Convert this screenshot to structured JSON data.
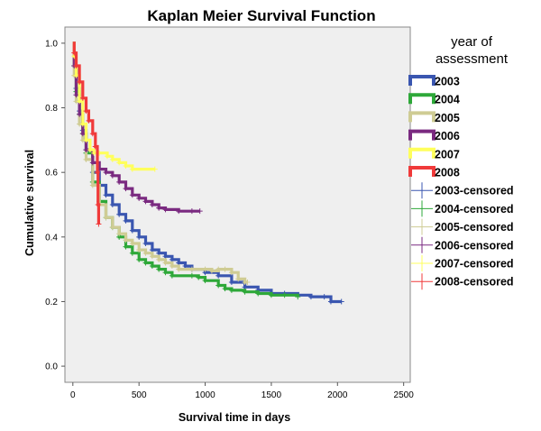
{
  "chart_data": {
    "type": "line",
    "title": "Kaplan Meier Survival Function",
    "xlabel": "Survival time in days",
    "ylabel": "Cumulative survival",
    "xlim": [
      -60,
      2550
    ],
    "ylim": [
      -0.05,
      1.05
    ],
    "x_ticks": [
      0,
      500,
      1000,
      1500,
      2000,
      2500
    ],
    "y_ticks": [
      "0.0",
      "0.2",
      "0.4",
      "0.6",
      "0.8",
      "1.0"
    ],
    "grid": false,
    "plot_background": "#efefef",
    "legend": {
      "title": "year of\nassessment",
      "position": "right",
      "entries": [
        "2003",
        "2004",
        "2005",
        "2006",
        "2007",
        "2008",
        "2003-censored",
        "2004-censored",
        "2005-censored",
        "2006-censored",
        "2007-censored",
        "2008-censored"
      ]
    },
    "series": [
      {
        "name": "2003",
        "color": "#3a56b0",
        "points": [
          [
            0,
            1.0
          ],
          [
            10,
            0.93
          ],
          [
            25,
            0.86
          ],
          [
            50,
            0.79
          ],
          [
            75,
            0.73
          ],
          [
            100,
            0.67
          ],
          [
            150,
            0.6
          ],
          [
            200,
            0.56
          ],
          [
            250,
            0.53
          ],
          [
            300,
            0.5
          ],
          [
            350,
            0.47
          ],
          [
            400,
            0.45
          ],
          [
            450,
            0.42
          ],
          [
            500,
            0.4
          ],
          [
            550,
            0.38
          ],
          [
            600,
            0.36
          ],
          [
            650,
            0.35
          ],
          [
            700,
            0.34
          ],
          [
            750,
            0.33
          ],
          [
            800,
            0.32
          ],
          [
            850,
            0.31
          ],
          [
            900,
            0.3
          ],
          [
            1000,
            0.29
          ],
          [
            1100,
            0.28
          ],
          [
            1200,
            0.26
          ],
          [
            1300,
            0.245
          ],
          [
            1400,
            0.235
          ],
          [
            1500,
            0.225
          ],
          [
            1600,
            0.225
          ],
          [
            1700,
            0.22
          ],
          [
            1800,
            0.215
          ],
          [
            1900,
            0.215
          ],
          [
            1950,
            0.2
          ],
          [
            2030,
            0.2
          ]
        ]
      },
      {
        "name": "2004",
        "color": "#2ea839",
        "points": [
          [
            0,
            1.0
          ],
          [
            10,
            0.93
          ],
          [
            25,
            0.85
          ],
          [
            50,
            0.78
          ],
          [
            75,
            0.72
          ],
          [
            100,
            0.66
          ],
          [
            150,
            0.57
          ],
          [
            200,
            0.51
          ],
          [
            250,
            0.46
          ],
          [
            300,
            0.43
          ],
          [
            350,
            0.4
          ],
          [
            400,
            0.37
          ],
          [
            450,
            0.35
          ],
          [
            500,
            0.33
          ],
          [
            550,
            0.32
          ],
          [
            600,
            0.31
          ],
          [
            650,
            0.3
          ],
          [
            700,
            0.29
          ],
          [
            750,
            0.28
          ],
          [
            900,
            0.28
          ],
          [
            950,
            0.275
          ],
          [
            1000,
            0.265
          ],
          [
            1100,
            0.25
          ],
          [
            1150,
            0.24
          ],
          [
            1200,
            0.235
          ],
          [
            1300,
            0.23
          ],
          [
            1400,
            0.225
          ],
          [
            1500,
            0.22
          ],
          [
            1600,
            0.22
          ],
          [
            1700,
            0.215
          ]
        ]
      },
      {
        "name": "2005",
        "color": "#cfcc94",
        "points": [
          [
            0,
            1.0
          ],
          [
            10,
            0.9
          ],
          [
            25,
            0.82
          ],
          [
            50,
            0.75
          ],
          [
            75,
            0.7
          ],
          [
            100,
            0.64
          ],
          [
            150,
            0.56
          ],
          [
            200,
            0.5
          ],
          [
            250,
            0.46
          ],
          [
            300,
            0.43
          ],
          [
            350,
            0.41
          ],
          [
            400,
            0.39
          ],
          [
            450,
            0.38
          ],
          [
            500,
            0.36
          ],
          [
            550,
            0.35
          ],
          [
            600,
            0.34
          ],
          [
            650,
            0.33
          ],
          [
            700,
            0.32
          ],
          [
            750,
            0.31
          ],
          [
            800,
            0.3
          ],
          [
            900,
            0.3
          ],
          [
            1000,
            0.3
          ],
          [
            1050,
            0.295
          ],
          [
            1100,
            0.3
          ],
          [
            1150,
            0.3
          ],
          [
            1200,
            0.29
          ],
          [
            1250,
            0.27
          ],
          [
            1300,
            0.26
          ],
          [
            1320,
            0.26
          ]
        ]
      },
      {
        "name": "2006",
        "color": "#7a2a80",
        "points": [
          [
            0,
            1.0
          ],
          [
            10,
            0.93
          ],
          [
            25,
            0.84
          ],
          [
            50,
            0.78
          ],
          [
            75,
            0.72
          ],
          [
            100,
            0.67
          ],
          [
            150,
            0.63
          ],
          [
            200,
            0.61
          ],
          [
            250,
            0.6
          ],
          [
            300,
            0.59
          ],
          [
            350,
            0.57
          ],
          [
            400,
            0.55
          ],
          [
            450,
            0.53
          ],
          [
            500,
            0.52
          ],
          [
            550,
            0.51
          ],
          [
            600,
            0.5
          ],
          [
            650,
            0.49
          ],
          [
            700,
            0.485
          ],
          [
            800,
            0.48
          ],
          [
            900,
            0.48
          ],
          [
            960,
            0.48
          ]
        ]
      },
      {
        "name": "2007",
        "color": "#ffff5c",
        "points": [
          [
            0,
            1.0
          ],
          [
            10,
            0.96
          ],
          [
            25,
            0.9
          ],
          [
            50,
            0.82
          ],
          [
            75,
            0.75
          ],
          [
            100,
            0.7
          ],
          [
            130,
            0.67
          ],
          [
            160,
            0.66
          ],
          [
            200,
            0.66
          ],
          [
            260,
            0.65
          ],
          [
            300,
            0.64
          ],
          [
            350,
            0.63
          ],
          [
            400,
            0.62
          ],
          [
            450,
            0.61
          ],
          [
            620,
            0.61
          ]
        ]
      },
      {
        "name": "2008",
        "color": "#f03a3a",
        "points": [
          [
            0,
            1.0
          ],
          [
            10,
            0.97
          ],
          [
            25,
            0.93
          ],
          [
            50,
            0.88
          ],
          [
            75,
            0.83
          ],
          [
            100,
            0.79
          ],
          [
            120,
            0.76
          ],
          [
            150,
            0.72
          ],
          [
            170,
            0.68
          ],
          [
            185,
            0.6
          ],
          [
            190,
            0.5
          ],
          [
            195,
            0.44
          ]
        ]
      }
    ]
  }
}
